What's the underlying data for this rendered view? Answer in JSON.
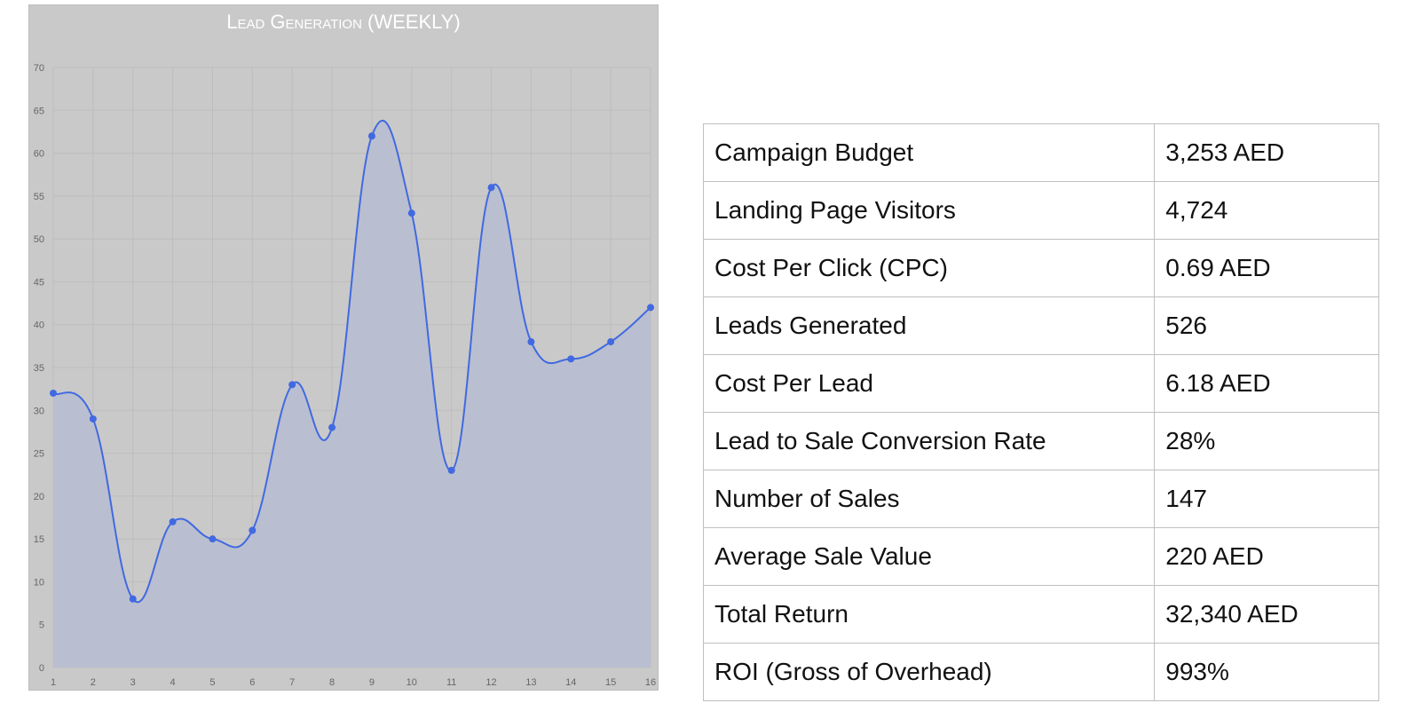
{
  "chart_data": {
    "type": "area",
    "title": "Lead Generation (WEEKLY)",
    "xlabel": "",
    "ylabel": "",
    "x": [
      1,
      2,
      3,
      4,
      5,
      6,
      7,
      8,
      9,
      10,
      11,
      12,
      13,
      14,
      15,
      16
    ],
    "series": [
      {
        "values": [
          32,
          29,
          8,
          17,
          15,
          16,
          33,
          28,
          62,
          53,
          23,
          56,
          38,
          36,
          38,
          42
        ]
      }
    ],
    "ylim": [
      0,
      70
    ],
    "yticks": [
      0,
      5,
      10,
      15,
      20,
      25,
      30,
      35,
      40,
      45,
      50,
      55,
      60,
      65,
      70
    ],
    "grid": true,
    "colors": {
      "line": "#4169e1",
      "fill": "#b9bfd0",
      "background": "#c9c9c9"
    }
  },
  "table": {
    "rows": [
      {
        "label": "Campaign Budget",
        "value": "3,253 AED"
      },
      {
        "label": "Landing Page Visitors",
        "value": "4,724"
      },
      {
        "label": "Cost Per Click (CPC)",
        "value": "0.69 AED"
      },
      {
        "label": "Leads Generated",
        "value": "526"
      },
      {
        "label": "Cost Per Lead",
        "value": "6.18 AED"
      },
      {
        "label": "Lead to Sale Conversion Rate",
        "value": "28%"
      },
      {
        "label": "Number of Sales",
        "value": "147"
      },
      {
        "label": "Average Sale Value",
        "value": "220 AED"
      },
      {
        "label": "Total Return",
        "value": "32,340 AED"
      },
      {
        "label": "ROI (Gross of Overhead)",
        "value": "993%"
      }
    ]
  }
}
